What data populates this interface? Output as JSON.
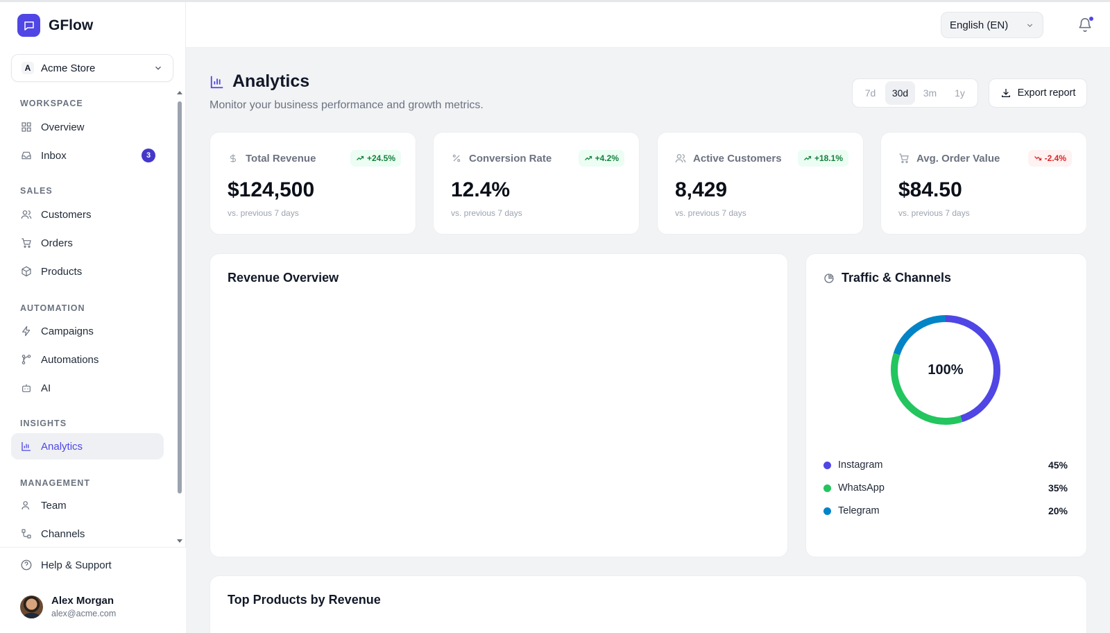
{
  "app": {
    "name": "GFlow"
  },
  "store": {
    "initial": "A",
    "name": "Acme Store"
  },
  "sidebar": {
    "sections": [
      {
        "title": "WORKSPACE",
        "items": [
          {
            "label": "Overview",
            "icon": "grid-icon"
          },
          {
            "label": "Inbox",
            "icon": "inbox-icon",
            "badge": "3"
          }
        ]
      },
      {
        "title": "SALES",
        "items": [
          {
            "label": "Customers",
            "icon": "users-icon"
          },
          {
            "label": "Orders",
            "icon": "cart-icon"
          },
          {
            "label": "Products",
            "icon": "box-icon"
          }
        ]
      },
      {
        "title": "AUTOMATION",
        "items": [
          {
            "label": "Campaigns",
            "icon": "zap-icon"
          },
          {
            "label": "Automations",
            "icon": "workflow-icon"
          },
          {
            "label": "AI",
            "icon": "bot-icon"
          }
        ]
      },
      {
        "title": "INSIGHTS",
        "items": [
          {
            "label": "Analytics",
            "icon": "bar-chart-icon",
            "active": true
          }
        ]
      },
      {
        "title": "MANAGEMENT",
        "items": [
          {
            "label": "Team",
            "icon": "user-icon"
          },
          {
            "label": "Channels",
            "icon": "channels-icon"
          }
        ]
      }
    ],
    "help_label": "Help & Support",
    "user": {
      "name": "Alex Morgan",
      "email": "alex@acme.com"
    }
  },
  "header": {
    "language": "English (EN)"
  },
  "page": {
    "title": "Analytics",
    "subtitle": "Monitor your business performance and growth metrics.",
    "ranges": [
      "7d",
      "30d",
      "3m",
      "1y"
    ],
    "active_range": "30d",
    "export_label": "Export report"
  },
  "kpis": [
    {
      "label": "Total Revenue",
      "icon": "dollar-icon",
      "delta": "+24.5%",
      "trend": "up",
      "value": "$124,500",
      "sub": "vs. previous 7 days"
    },
    {
      "label": "Conversion Rate",
      "icon": "percent-icon",
      "delta": "+4.2%",
      "trend": "up",
      "value": "12.4%",
      "sub": "vs. previous 7 days"
    },
    {
      "label": "Active Customers",
      "icon": "users-icon",
      "delta": "+18.1%",
      "trend": "up",
      "value": "8,429",
      "sub": "vs. previous 7 days"
    },
    {
      "label": "Avg. Order Value",
      "icon": "cart-icon",
      "delta": "-2.4%",
      "trend": "down",
      "value": "$84.50",
      "sub": "vs. previous 7 days"
    }
  ],
  "revenue_overview": {
    "title": "Revenue Overview"
  },
  "traffic": {
    "title": "Traffic & Channels",
    "center_label": "100%",
    "channels": [
      {
        "name": "Instagram",
        "value": "45%",
        "color": "#4f46e5"
      },
      {
        "name": "WhatsApp",
        "value": "35%",
        "color": "#22c55e"
      },
      {
        "name": "Telegram",
        "value": "20%",
        "color": "#0284c7"
      }
    ]
  },
  "top_products": {
    "title": "Top Products by Revenue"
  },
  "colors": {
    "accent": "#4f46e5",
    "up": "#15803d",
    "down": "#dc2626"
  }
}
